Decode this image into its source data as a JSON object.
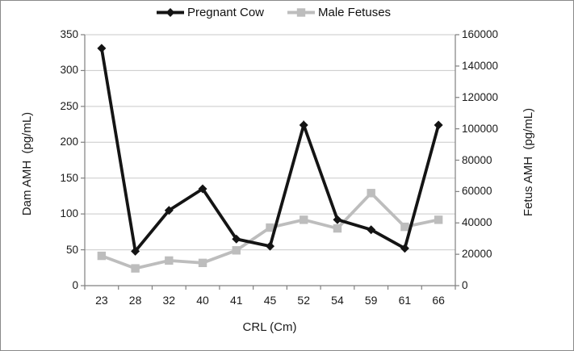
{
  "figure": {
    "background": "#ffffff",
    "border_color": "#8a8a8a"
  },
  "chart_data": {
    "type": "line",
    "title": "",
    "categories": [
      "23",
      "28",
      "32",
      "40",
      "41",
      "45",
      "52",
      "54",
      "59",
      "61",
      "66"
    ],
    "x_axis": {
      "label": "CRL (Cm)"
    },
    "left_axis": {
      "label": "Dam AMH  (pg/mL)",
      "min": 0,
      "max": 350,
      "step": 50,
      "tick_labels": [
        "0",
        "50",
        "100",
        "150",
        "200",
        "250",
        "300",
        "350"
      ]
    },
    "right_axis": {
      "label": "Fetus AMH  (pg/mL)",
      "min": 0,
      "max": 160000,
      "step": 20000,
      "tick_labels": [
        "0",
        "20000",
        "40000",
        "60000",
        "80000",
        "100000",
        "120000",
        "140000",
        "160000"
      ]
    },
    "series": [
      {
        "name": "Pregnant Cow",
        "axis": "left",
        "marker": "diamond",
        "color": "#141414",
        "values": [
          331,
          48,
          105,
          135,
          65,
          55,
          224,
          92,
          78,
          52,
          224
        ]
      },
      {
        "name": "Male Fetuses",
        "axis": "right",
        "marker": "square",
        "color": "#bdbdbd",
        "values": [
          19000,
          11000,
          16000,
          14500,
          22500,
          37000,
          42000,
          36500,
          59000,
          37500,
          42000
        ]
      }
    ],
    "legend": {
      "position": "top"
    },
    "grid": {
      "horizontal": true,
      "color": "#c9c9c9"
    },
    "axis_color": "#808080",
    "text_color": "#1a1a1a"
  }
}
